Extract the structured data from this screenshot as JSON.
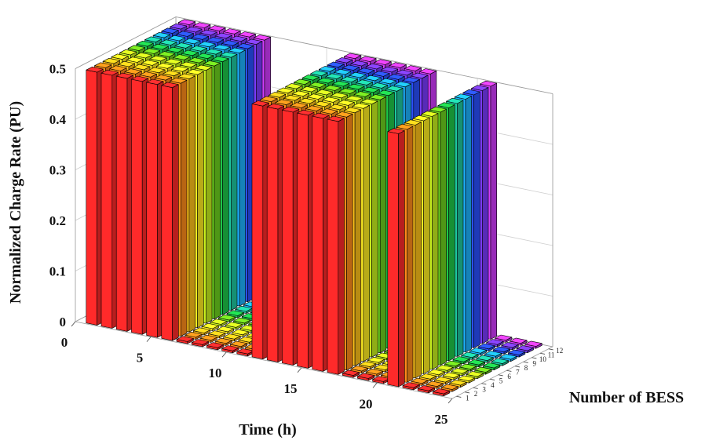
{
  "chart_data": {
    "type": "bar3d",
    "xlabel": "Time (h)",
    "ylabel": "Number of BESS",
    "zlabel": "Normalized Charge Rate (PU)",
    "x_ticks": [
      "0",
      "5",
      "10",
      "15",
      "20",
      "25"
    ],
    "y_ticks": [
      "1",
      "2",
      "3",
      "4",
      "5",
      "6",
      "7",
      "8",
      "9",
      "10",
      "11",
      "12"
    ],
    "z_ticks": [
      "0",
      "0.1",
      "0.2",
      "0.3",
      "0.4",
      "0.5"
    ],
    "xlim": [
      0,
      25
    ],
    "ylim": [
      0,
      12
    ],
    "zlim": [
      0,
      0.5
    ],
    "grid": true,
    "series_colors": [
      "#ff2a2a",
      "#ff8c1a",
      "#ffc21a",
      "#ffee22",
      "#c8f01e",
      "#6ed21e",
      "#1ec84a",
      "#1ec8a0",
      "#1eb4ff",
      "#2a50ff",
      "#7a3cff",
      "#d23cff"
    ],
    "charge_windows": [
      {
        "start_hour": 1,
        "end_hour": 6,
        "value": 0.5
      },
      {
        "start_hour": 12,
        "end_hour": 17,
        "value": 0.5
      },
      {
        "start_hour": 21,
        "end_hour": 21,
        "value": 0.5
      }
    ],
    "idle_value": 0
  }
}
